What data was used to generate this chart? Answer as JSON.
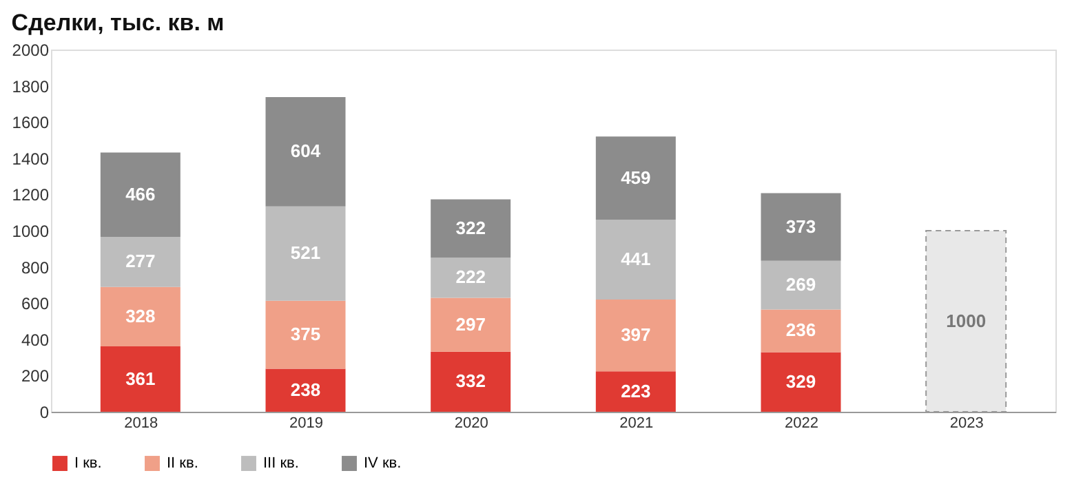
{
  "chart_data": {
    "type": "bar",
    "title": "Сделки, тыс. кв. м",
    "categories": [
      "2018",
      "2019",
      "2020",
      "2021",
      "2022",
      "2023"
    ],
    "series": [
      {
        "name": "I кв.",
        "color": "#e03a33",
        "values": [
          361,
          238,
          332,
          223,
          329,
          null
        ]
      },
      {
        "name": "II кв.",
        "color": "#f0a088",
        "values": [
          328,
          375,
          297,
          397,
          236,
          null
        ]
      },
      {
        "name": "III кв.",
        "color": "#bdbdbd",
        "values": [
          277,
          521,
          222,
          441,
          269,
          null
        ]
      },
      {
        "name": "IV кв.",
        "color": "#8c8c8c",
        "values": [
          466,
          604,
          322,
          459,
          373,
          null
        ]
      },
      {
        "color": "#e8e8e8",
        "values": [
          null,
          null,
          null,
          null,
          null,
          1000
        ]
      }
    ],
    "stacked": true,
    "data_labels": true,
    "ylim": [
      0,
      2000
    ],
    "yticks": [
      0,
      200,
      400,
      600,
      800,
      1000,
      1200,
      1400,
      1600,
      1800,
      2000
    ],
    "grid": false,
    "legend": "bottom"
  }
}
